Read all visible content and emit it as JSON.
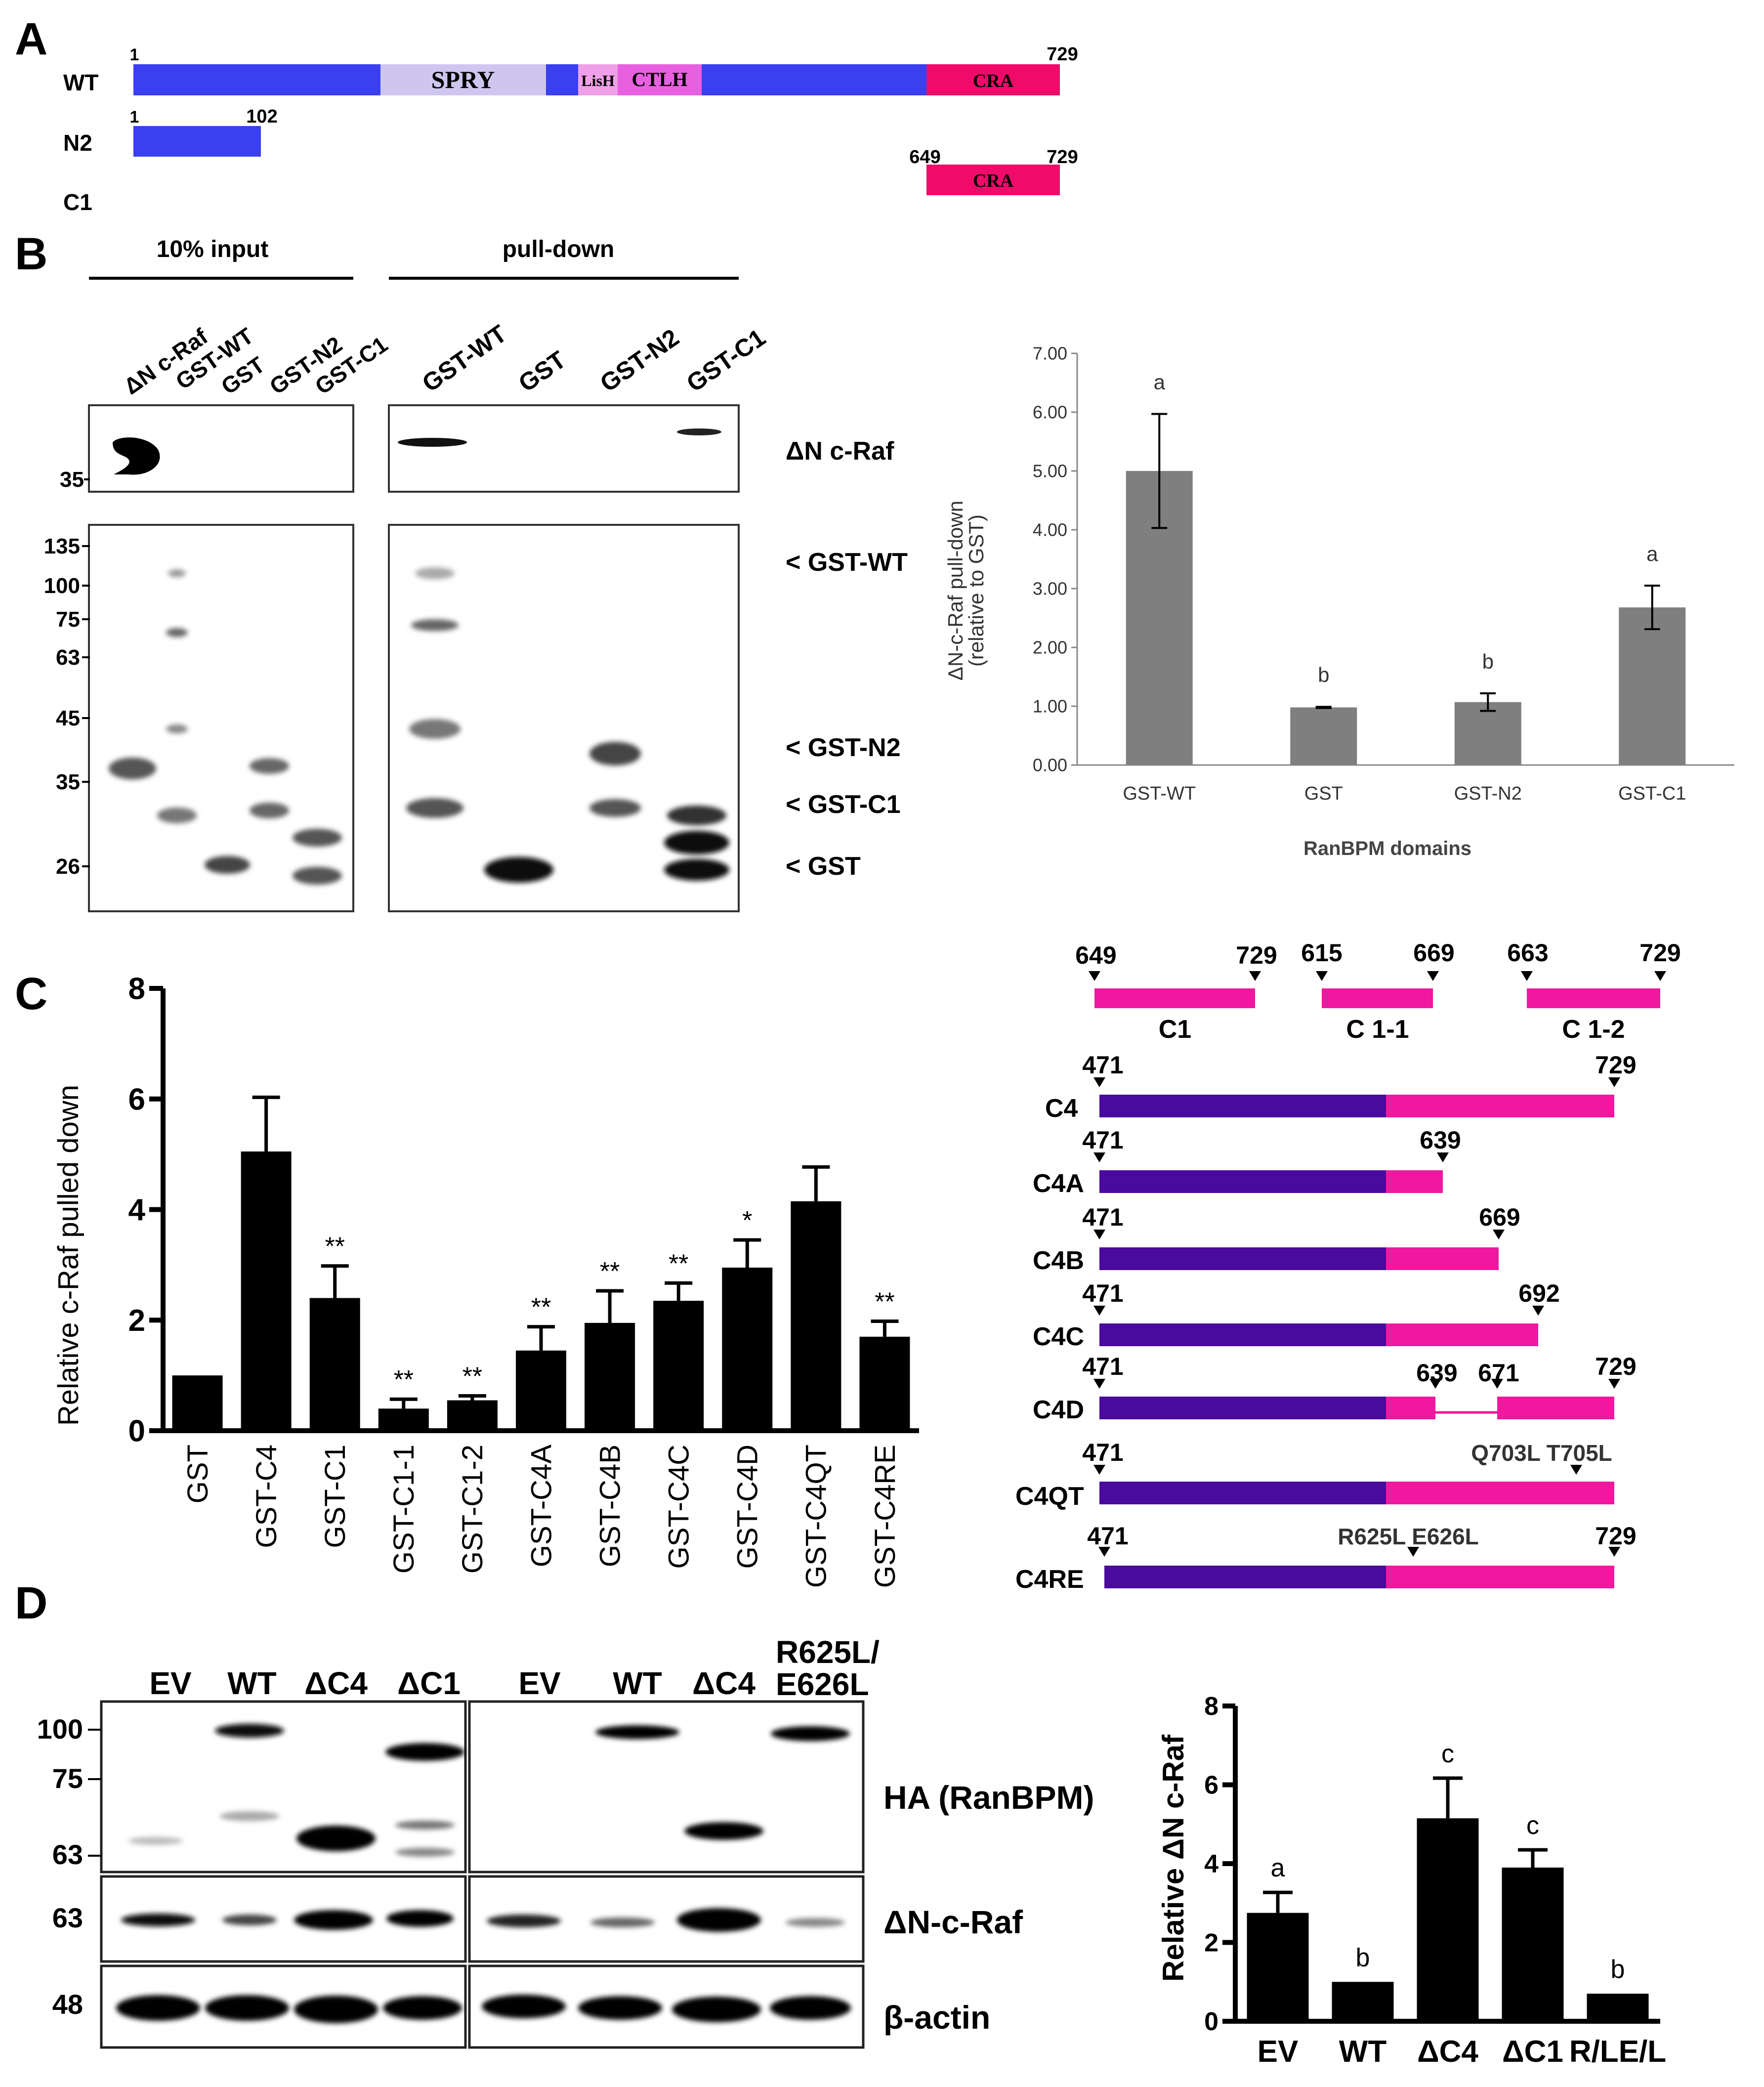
{
  "panels": {
    "A": {
      "letter": "A",
      "rows": [
        {
          "label": "WT",
          "start": "1",
          "end": "729",
          "domains": [
            "SPRY",
            "LisH",
            "CTLH",
            "CRA"
          ]
        },
        {
          "label": "N2",
          "start": "1",
          "end": "102"
        },
        {
          "label": "C1",
          "start": "649",
          "end": "729",
          "domains": [
            "CRA"
          ]
        }
      ]
    },
    "B": {
      "letter": "B",
      "group_labels": [
        "10% input",
        "pull-down"
      ],
      "input_lanes": [
        "ΔN c-Raf",
        "GST-WT",
        "GST",
        "GST-N2",
        "GST-C1"
      ],
      "pulldown_lanes": [
        "GST-WT",
        "GST",
        "GST-N2",
        "GST-C1"
      ],
      "markers_top": [
        "35"
      ],
      "markers_bottom": [
        "135",
        "100",
        "75",
        "63",
        "45",
        "35",
        "26"
      ],
      "band_labels": [
        "ΔN c-Raf",
        "< GST-WT",
        "< GST-N2",
        "< GST-C1",
        "< GST"
      ]
    },
    "C": {
      "letter": "C",
      "constructs": {
        "fragments": [
          {
            "name": "C1",
            "start": "649",
            "end": "729"
          },
          {
            "name": "C 1-1",
            "start": "615",
            "end": "669"
          },
          {
            "name": "C 1-2",
            "start": "663",
            "end": "729"
          }
        ],
        "rows": [
          {
            "name": "C4",
            "labels": [
              "471",
              "729"
            ]
          },
          {
            "name": "C4A",
            "labels": [
              "471",
              "639"
            ]
          },
          {
            "name": "C4B",
            "labels": [
              "471",
              "669"
            ]
          },
          {
            "name": "C4C",
            "labels": [
              "471",
              "692"
            ]
          },
          {
            "name": "C4D",
            "labels": [
              "471",
              "639",
              "671",
              "729"
            ]
          },
          {
            "name": "C4QT",
            "labels": [
              "471",
              "Q703L T705L"
            ]
          },
          {
            "name": "C4RE",
            "labels": [
              "471",
              "R625L E626L",
              "729"
            ]
          }
        ]
      }
    },
    "D": {
      "letter": "D",
      "lanes_left": [
        "EV",
        "WT",
        "ΔC4",
        "ΔC1"
      ],
      "lanes_right": [
        "EV",
        "WT",
        "ΔC4",
        "R625L/",
        "E626L"
      ],
      "markers": [
        "100",
        "75",
        "63",
        "63",
        "48"
      ],
      "blot_labels": [
        "HA (RanBPM)",
        "ΔN-c-Raf",
        "β-actin"
      ]
    }
  },
  "colors": {
    "blue": "#3a3ff0",
    "spry": "#cfc6f0",
    "lish": "#f0a0e8",
    "ctlh": "#e860e0",
    "cra": "#f00a6a",
    "purple": "#4a0a9e",
    "pink": "#f0189e",
    "gray_bar": "#7f7f7f",
    "black_bar": "#000000"
  },
  "chart_data": [
    {
      "id": "B-chart",
      "type": "bar",
      "categories": [
        "GST-WT",
        "GST",
        "GST-N2",
        "GST-C1"
      ],
      "values": [
        5.0,
        0.98,
        1.07,
        2.68
      ],
      "errors": [
        0.97,
        0.01,
        0.15,
        0.37
      ],
      "letters": [
        "a",
        "b",
        "b",
        "a"
      ],
      "ylim": [
        0,
        7
      ],
      "yticks": [
        "0.00",
        "1.00",
        "2.00",
        "3.00",
        "4.00",
        "5.00",
        "6.00",
        "7.00"
      ],
      "ylabel1": "ΔN-c-Raf pull-down",
      "ylabel2": "(relative to GST)",
      "xlabel": "RanBPM domains"
    },
    {
      "id": "C-chart",
      "type": "bar",
      "categories": [
        "GST",
        "GST-C4",
        "GST-C1",
        "GST-C1-1",
        "GST-C1-2",
        "GST-C4A",
        "GST-C4B",
        "GST-C4C",
        "GST-C4D",
        "GST-C4QT",
        "GST-C4RE"
      ],
      "values": [
        1.0,
        5.05,
        2.4,
        0.4,
        0.55,
        1.45,
        1.95,
        2.35,
        2.95,
        4.15,
        1.7
      ],
      "errors": [
        0.0,
        0.98,
        0.58,
        0.17,
        0.08,
        0.43,
        0.58,
        0.32,
        0.5,
        0.62,
        0.28
      ],
      "sig": [
        "",
        "",
        "**",
        "**",
        "**",
        "**",
        "**",
        "**",
        "*",
        "",
        "**"
      ],
      "ylim": [
        0,
        8
      ],
      "yticks": [
        "0",
        "2",
        "4",
        "6",
        "8"
      ],
      "ylabel": "Relative c-Raf pulled down"
    },
    {
      "id": "D-chart",
      "type": "bar",
      "categories": [
        "EV",
        "WT",
        "ΔC4",
        "ΔC1",
        "R/LE/L"
      ],
      "values": [
        2.75,
        1.0,
        5.15,
        3.9,
        0.7
      ],
      "errors": [
        0.52,
        0.0,
        1.02,
        0.45,
        0.0
      ],
      "letters": [
        "a",
        "b",
        "c",
        "c",
        "b"
      ],
      "ylim": [
        0,
        8
      ],
      "yticks": [
        "0",
        "2",
        "4",
        "6",
        "8"
      ],
      "ylabel": "Relative ΔN c-Raf"
    }
  ]
}
